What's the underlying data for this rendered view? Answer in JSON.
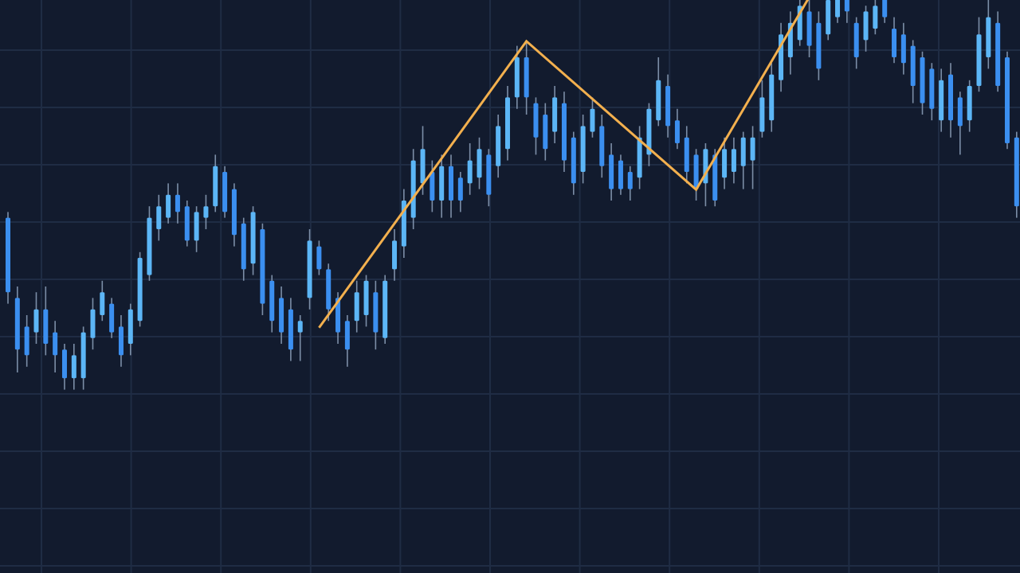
{
  "chart_data": {
    "type": "candlestick",
    "title": "",
    "xlabel": "",
    "ylabel": "",
    "ylim": [
      0,
      100
    ],
    "grid": true,
    "legend": "none",
    "colors": {
      "background": "#121b2e",
      "grid": "#1f2c44",
      "bullish": "#5cb6f6",
      "bearish": "#3b8ff0",
      "wick": "#8fa3bd",
      "zigzag": "#f3b04e"
    },
    "candles_ohlc": [
      [
        62,
        63,
        47,
        49
      ],
      [
        48,
        50,
        35,
        39
      ],
      [
        43,
        45,
        36,
        38
      ],
      [
        42,
        49,
        40,
        46
      ],
      [
        46,
        50,
        38,
        40
      ],
      [
        42,
        44,
        35,
        38
      ],
      [
        39,
        40,
        32,
        34
      ],
      [
        34,
        40,
        32,
        38
      ],
      [
        34,
        43,
        32,
        42
      ],
      [
        41,
        48,
        39,
        46
      ],
      [
        45,
        51,
        44,
        49
      ],
      [
        47,
        48,
        41,
        42
      ],
      [
        43,
        45,
        36,
        38
      ],
      [
        40,
        47,
        38,
        46
      ],
      [
        44,
        56,
        43,
        55
      ],
      [
        52,
        64,
        51,
        62
      ],
      [
        60,
        66,
        58,
        64
      ],
      [
        62,
        68,
        61,
        66
      ],
      [
        66,
        68,
        61,
        63
      ],
      [
        64,
        65,
        57,
        58
      ],
      [
        58,
        64,
        56,
        63
      ],
      [
        62,
        66,
        60,
        64
      ],
      [
        64,
        73,
        63,
        71
      ],
      [
        70,
        71,
        62,
        63
      ],
      [
        67,
        68,
        57,
        59
      ],
      [
        61,
        62,
        51,
        53
      ],
      [
        54,
        64,
        52,
        63
      ],
      [
        60,
        61,
        45,
        47
      ],
      [
        51,
        52,
        42,
        44
      ],
      [
        48,
        50,
        40,
        42
      ],
      [
        46,
        48,
        37,
        39
      ],
      [
        42,
        45,
        37,
        44
      ],
      [
        48,
        60,
        46,
        58
      ],
      [
        57,
        58,
        52,
        53
      ],
      [
        53,
        54,
        44,
        46
      ],
      [
        48,
        49,
        40,
        42
      ],
      [
        44,
        45,
        36,
        39
      ],
      [
        44,
        51,
        42,
        49
      ],
      [
        45,
        52,
        43,
        51
      ],
      [
        49,
        51,
        39,
        42
      ],
      [
        41,
        52,
        40,
        51
      ],
      [
        53,
        60,
        51,
        58
      ],
      [
        57,
        67,
        55,
        65
      ],
      [
        62,
        74,
        60,
        72
      ],
      [
        68,
        78,
        66,
        74
      ],
      [
        70,
        72,
        63,
        65
      ],
      [
        65,
        73,
        62,
        71
      ],
      [
        71,
        73,
        62,
        65
      ],
      [
        69,
        70,
        63,
        65
      ],
      [
        68,
        75,
        66,
        72
      ],
      [
        69,
        76,
        67,
        74
      ],
      [
        73,
        74,
        64,
        66
      ],
      [
        71,
        80,
        69,
        78
      ],
      [
        74,
        85,
        72,
        83
      ],
      [
        83,
        92,
        81,
        90
      ],
      [
        90,
        93,
        80,
        83
      ],
      [
        82,
        83,
        73,
        76
      ],
      [
        80,
        82,
        72,
        74
      ],
      [
        77,
        85,
        75,
        83
      ],
      [
        82,
        84,
        70,
        72
      ],
      [
        76,
        77,
        66,
        68
      ],
      [
        70,
        80,
        68,
        78
      ],
      [
        77,
        83,
        76,
        81
      ],
      [
        78,
        80,
        69,
        71
      ],
      [
        73,
        75,
        65,
        67
      ],
      [
        72,
        73,
        66,
        67
      ],
      [
        70,
        71,
        65,
        67
      ],
      [
        69,
        78,
        67,
        76
      ],
      [
        73,
        82,
        71,
        81
      ],
      [
        79,
        90,
        78,
        86
      ],
      [
        85,
        87,
        76,
        78
      ],
      [
        79,
        81,
        74,
        75
      ],
      [
        76,
        78,
        68,
        70
      ],
      [
        73,
        74,
        65,
        67
      ],
      [
        68,
        75,
        64,
        74
      ],
      [
        73,
        74,
        64,
        65
      ],
      [
        69,
        76,
        67,
        74
      ],
      [
        70,
        76,
        68,
        74
      ],
      [
        71,
        77,
        67,
        76
      ],
      [
        72,
        78,
        67,
        76
      ],
      [
        77,
        86,
        76,
        83
      ],
      [
        79,
        89,
        77,
        87
      ],
      [
        86,
        96,
        84,
        94
      ],
      [
        90,
        98,
        87,
        96
      ],
      [
        93,
        101,
        92,
        99
      ],
      [
        98,
        100,
        90,
        92
      ],
      [
        96,
        98,
        86,
        88
      ],
      [
        94,
        102,
        93,
        100
      ],
      [
        97,
        103,
        96,
        101
      ],
      [
        101,
        103,
        96,
        98
      ],
      [
        96,
        97,
        88,
        90
      ],
      [
        93,
        99,
        91,
        98
      ],
      [
        95,
        101,
        94,
        99
      ],
      [
        101,
        103,
        96,
        97
      ],
      [
        95,
        97,
        89,
        90
      ],
      [
        94,
        96,
        87,
        89
      ],
      [
        92,
        93,
        82,
        85
      ],
      [
        90,
        91,
        80,
        82
      ],
      [
        88,
        89,
        79,
        81
      ],
      [
        79,
        88,
        77,
        86
      ],
      [
        87,
        89,
        76,
        79
      ],
      [
        83,
        84,
        73,
        78
      ],
      [
        79,
        86,
        77,
        85
      ],
      [
        85,
        97,
        84,
        94
      ],
      [
        90,
        101,
        88,
        97
      ],
      [
        96,
        98,
        84,
        85
      ],
      [
        90,
        91,
        74,
        75
      ],
      [
        76,
        77,
        62,
        64
      ]
    ],
    "zigzag": [
      {
        "candle": 33,
        "price": 42.8
      },
      {
        "candle": 55,
        "price": 92.8
      },
      {
        "candle": 73,
        "price": 66.9
      },
      {
        "candle": 85,
        "price": 100.5
      }
    ]
  }
}
